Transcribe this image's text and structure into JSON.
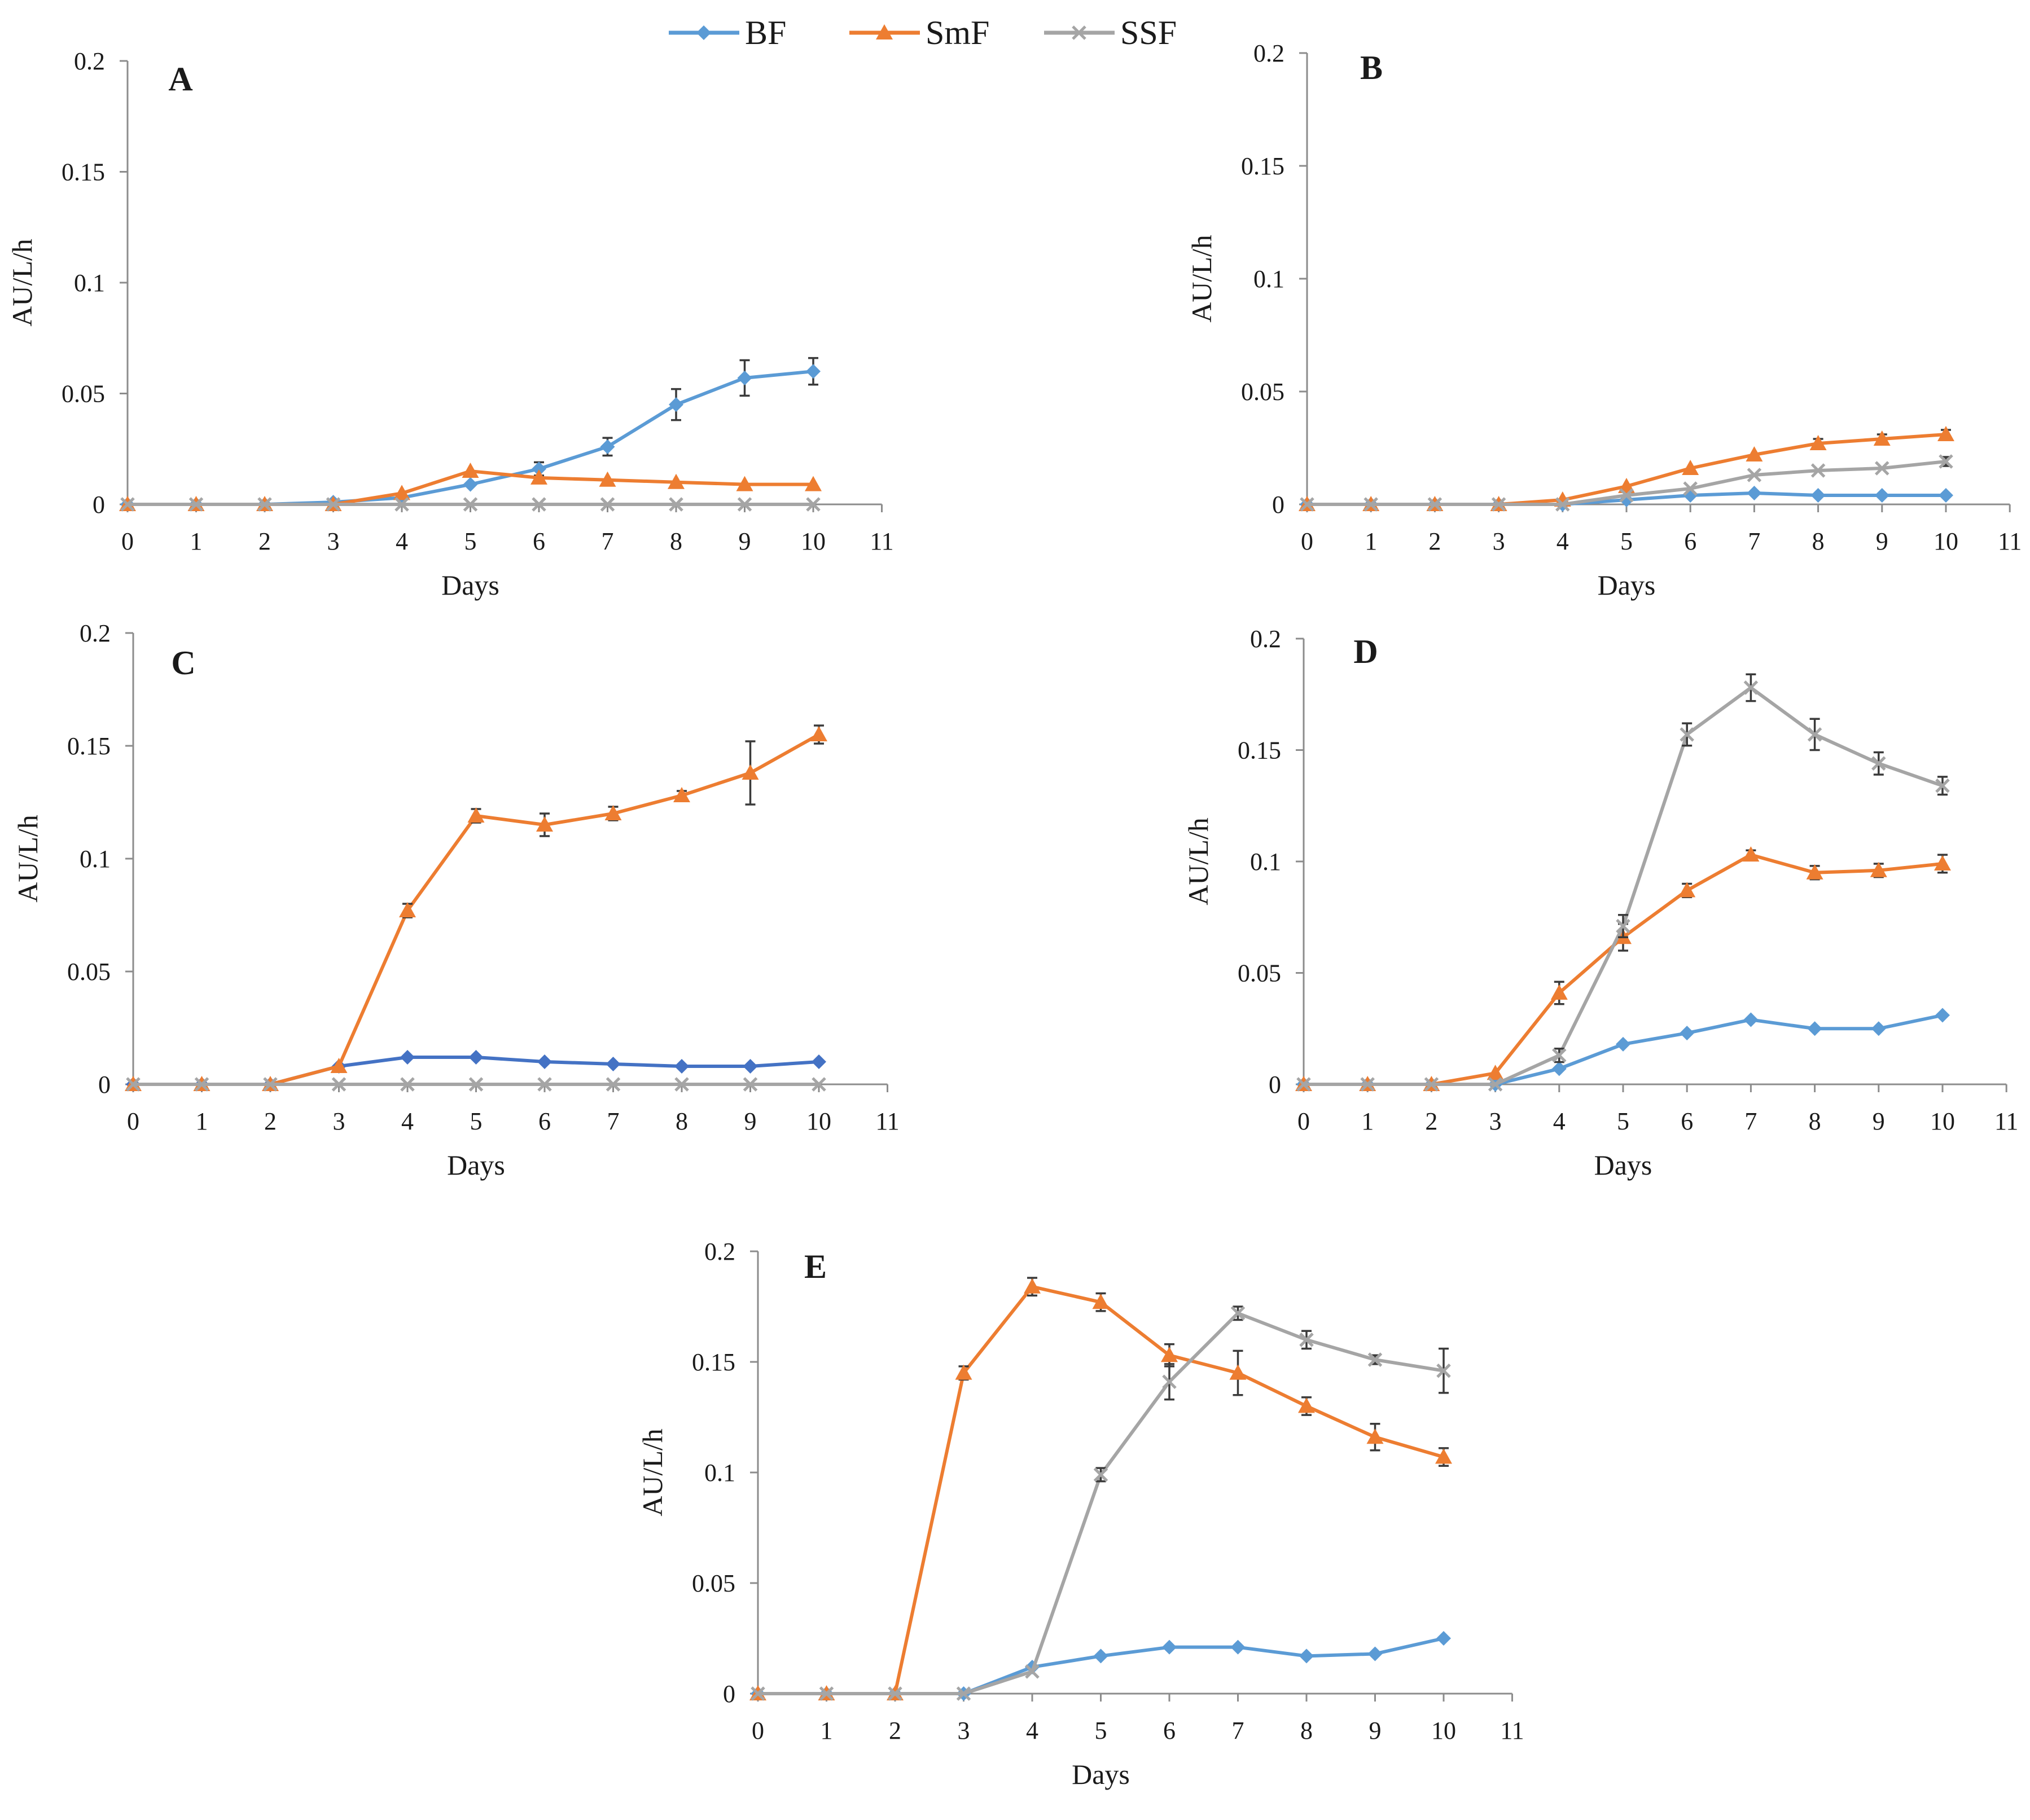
{
  "legend": [
    {
      "name": "BF",
      "color": "#5b9bd5",
      "marker": "diamond"
    },
    {
      "name": "SmF",
      "color": "#ed7d31",
      "marker": "triangle"
    },
    {
      "name": "SSF",
      "color": "#a5a5a5",
      "marker": "x"
    }
  ],
  "chart_data": [
    {
      "id": "A",
      "type": "line",
      "panel_label": "A",
      "xlabel": "Days",
      "ylabel": "AU/L/h",
      "xlim": [
        0,
        11
      ],
      "ylim": [
        0,
        0.2
      ],
      "xticks": [
        "0",
        "1",
        "2",
        "3",
        "4",
        "5",
        "6",
        "7",
        "8",
        "9",
        "10",
        "11"
      ],
      "yticks": [
        "0",
        "0.05",
        "0.1",
        "0.15",
        "0.2"
      ],
      "x": [
        0,
        1,
        2,
        3,
        4,
        5,
        6,
        7,
        8,
        9,
        10
      ],
      "series": [
        {
          "name": "BF",
          "color": "#5b9bd5",
          "marker": "diamond",
          "values": [
            0,
            0,
            0,
            0.001,
            0.003,
            0.009,
            0.016,
            0.026,
            0.045,
            0.057,
            0.06
          ],
          "errors": [
            0,
            0,
            0,
            0,
            0,
            0,
            0.003,
            0.004,
            0.007,
            0.008,
            0.006
          ]
        },
        {
          "name": "SmF",
          "color": "#ed7d31",
          "marker": "triangle",
          "values": [
            0,
            0,
            0,
            0,
            0.005,
            0.015,
            0.012,
            0.011,
            0.01,
            0.009,
            0.009
          ],
          "errors": [
            0,
            0,
            0,
            0,
            0,
            0,
            0,
            0,
            0,
            0,
            0
          ]
        },
        {
          "name": "SSF",
          "color": "#a5a5a5",
          "marker": "x",
          "values": [
            0,
            0,
            0,
            0,
            0,
            0,
            0,
            0,
            0,
            0,
            0
          ],
          "errors": [
            0,
            0,
            0,
            0,
            0,
            0,
            0,
            0,
            0,
            0,
            0
          ]
        }
      ]
    },
    {
      "id": "B",
      "type": "line",
      "panel_label": "B",
      "xlabel": "Days",
      "ylabel": "AU/L/h",
      "xlim": [
        0,
        11
      ],
      "ylim": [
        0,
        0.2
      ],
      "xticks": [
        "0",
        "1",
        "2",
        "3",
        "4",
        "5",
        "6",
        "7",
        "8",
        "9",
        "10",
        "11"
      ],
      "yticks": [
        "0",
        "0.05",
        "0.1",
        "0.15",
        "0.2"
      ],
      "x": [
        0,
        1,
        2,
        3,
        4,
        5,
        6,
        7,
        8,
        9,
        10
      ],
      "series": [
        {
          "name": "BF",
          "color": "#5b9bd5",
          "marker": "diamond",
          "values": [
            0,
            0,
            0,
            0,
            0,
            0.002,
            0.004,
            0.005,
            0.004,
            0.004,
            0.004
          ],
          "errors": [
            0,
            0,
            0,
            0,
            0,
            0,
            0,
            0,
            0,
            0,
            0
          ]
        },
        {
          "name": "SmF",
          "color": "#ed7d31",
          "marker": "triangle",
          "values": [
            0,
            0,
            0,
            0,
            0.002,
            0.008,
            0.016,
            0.022,
            0.027,
            0.029,
            0.031
          ],
          "errors": [
            0,
            0,
            0,
            0,
            0,
            0,
            0,
            0,
            0.002,
            0.002,
            0.002
          ]
        },
        {
          "name": "SSF",
          "color": "#a5a5a5",
          "marker": "x",
          "values": [
            0,
            0,
            0,
            0,
            0,
            0.004,
            0.007,
            0.013,
            0.015,
            0.016,
            0.019
          ],
          "errors": [
            0,
            0,
            0,
            0,
            0,
            0,
            0,
            0,
            0,
            0,
            0.002
          ]
        }
      ]
    },
    {
      "id": "C",
      "type": "line",
      "panel_label": "C",
      "xlabel": "Days",
      "ylabel": "AU/L/h",
      "xlim": [
        0,
        11
      ],
      "ylim": [
        0,
        0.2
      ],
      "xticks": [
        "0",
        "1",
        "2",
        "3",
        "4",
        "5",
        "6",
        "7",
        "8",
        "9",
        "10",
        "11"
      ],
      "yticks": [
        "0",
        "0.05",
        "0.1",
        "0.15",
        "0.2"
      ],
      "x": [
        0,
        1,
        2,
        3,
        4,
        5,
        6,
        7,
        8,
        9,
        10
      ],
      "series": [
        {
          "name": "BF",
          "color": "#4472c4",
          "marker": "diamond",
          "values": [
            0,
            0,
            0,
            0.008,
            0.012,
            0.012,
            0.01,
            0.009,
            0.008,
            0.008,
            0.01
          ],
          "errors": [
            0,
            0,
            0,
            0,
            0,
            0,
            0,
            0,
            0,
            0,
            0
          ]
        },
        {
          "name": "SmF",
          "color": "#ed7d31",
          "marker": "triangle",
          "values": [
            0,
            0,
            0,
            0.008,
            0.077,
            0.119,
            0.115,
            0.12,
            0.128,
            0.138,
            0.155
          ],
          "errors": [
            0,
            0,
            0,
            0,
            0.003,
            0.003,
            0.005,
            0.003,
            0.002,
            0.014,
            0.004
          ]
        },
        {
          "name": "SSF",
          "color": "#a5a5a5",
          "marker": "x",
          "values": [
            0,
            0,
            0,
            0,
            0,
            0,
            0,
            0,
            0,
            0,
            0
          ],
          "errors": [
            0,
            0,
            0,
            0,
            0,
            0,
            0,
            0,
            0,
            0,
            0
          ]
        }
      ]
    },
    {
      "id": "D",
      "type": "line",
      "panel_label": "D",
      "xlabel": "Days",
      "ylabel": "AU/L/h",
      "xlim": [
        0,
        11
      ],
      "ylim": [
        0,
        0.2
      ],
      "xticks": [
        "0",
        "1",
        "2",
        "3",
        "4",
        "5",
        "6",
        "7",
        "8",
        "9",
        "10",
        "11"
      ],
      "yticks": [
        "0",
        "0.05",
        "0.1",
        "0.15",
        "0.2"
      ],
      "x": [
        0,
        1,
        2,
        3,
        4,
        5,
        6,
        7,
        8,
        9,
        10
      ],
      "series": [
        {
          "name": "BF",
          "color": "#5b9bd5",
          "marker": "diamond",
          "values": [
            0,
            0,
            0,
            0,
            0.007,
            0.018,
            0.023,
            0.029,
            0.025,
            0.025,
            0.031
          ],
          "errors": [
            0,
            0,
            0,
            0,
            0,
            0,
            0,
            0,
            0,
            0,
            0
          ]
        },
        {
          "name": "SmF",
          "color": "#ed7d31",
          "marker": "triangle",
          "values": [
            0,
            0,
            0,
            0.005,
            0.041,
            0.066,
            0.087,
            0.103,
            0.095,
            0.096,
            0.099
          ],
          "errors": [
            0,
            0,
            0,
            0,
            0.005,
            0.006,
            0.003,
            0.002,
            0.003,
            0.003,
            0.004
          ]
        },
        {
          "name": "SSF",
          "color": "#a5a5a5",
          "marker": "x",
          "values": [
            0,
            0,
            0,
            0,
            0.013,
            0.071,
            0.157,
            0.178,
            0.157,
            0.144,
            0.134
          ],
          "errors": [
            0,
            0,
            0,
            0,
            0.003,
            0.005,
            0.005,
            0.006,
            0.007,
            0.005,
            0.004
          ]
        }
      ]
    },
    {
      "id": "E",
      "type": "line",
      "panel_label": "E",
      "xlabel": "Days",
      "ylabel": "AU/L/h",
      "xlim": [
        0,
        11
      ],
      "ylim": [
        0,
        0.2
      ],
      "xticks": [
        "0",
        "1",
        "2",
        "3",
        "4",
        "5",
        "6",
        "7",
        "8",
        "9",
        "10",
        "11"
      ],
      "yticks": [
        "0",
        "0.05",
        "0.1",
        "0.15",
        "0.2"
      ],
      "x": [
        0,
        1,
        2,
        3,
        4,
        5,
        6,
        7,
        8,
        9,
        10
      ],
      "series": [
        {
          "name": "BF",
          "color": "#5b9bd5",
          "marker": "diamond",
          "values": [
            0,
            0,
            0,
            0,
            0.012,
            0.017,
            0.021,
            0.021,
            0.017,
            0.018,
            0.025
          ],
          "errors": [
            0,
            0,
            0,
            0,
            0,
            0,
            0,
            0,
            0,
            0,
            0
          ]
        },
        {
          "name": "SmF",
          "color": "#ed7d31",
          "marker": "triangle",
          "values": [
            0,
            0,
            0,
            0.145,
            0.184,
            0.177,
            0.153,
            0.145,
            0.13,
            0.116,
            0.107
          ],
          "errors": [
            0,
            0,
            0,
            0.003,
            0.004,
            0.004,
            0.005,
            0.01,
            0.004,
            0.006,
            0.004
          ]
        },
        {
          "name": "SSF",
          "color": "#a5a5a5",
          "marker": "x",
          "values": [
            0,
            0,
            0,
            0,
            0.01,
            0.099,
            0.141,
            0.172,
            0.16,
            0.151,
            0.146
          ],
          "errors": [
            0,
            0,
            0,
            0,
            0,
            0.003,
            0.008,
            0.003,
            0.004,
            0.002,
            0.01
          ]
        }
      ]
    }
  ]
}
